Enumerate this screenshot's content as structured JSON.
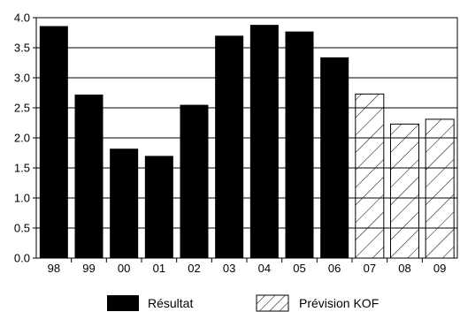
{
  "chart_data": {
    "type": "bar",
    "categories": [
      "98",
      "99",
      "00",
      "01",
      "02",
      "03",
      "04",
      "05",
      "06",
      "07",
      "08",
      "09"
    ],
    "series": [
      {
        "name": "Résultat",
        "values": [
          3.86,
          2.72,
          1.82,
          1.7,
          2.55,
          3.7,
          3.88,
          3.77,
          3.34,
          null,
          null,
          null
        ]
      },
      {
        "name": "Prévision KOF",
        "values": [
          null,
          null,
          null,
          null,
          null,
          null,
          null,
          null,
          null,
          2.73,
          2.23,
          2.31
        ]
      }
    ],
    "ylim": [
      0,
      4.0
    ],
    "yticks": [
      "0.0",
      "0.5",
      "1.0",
      "1.5",
      "2.0",
      "2.5",
      "3.0",
      "3.5",
      "4.0"
    ],
    "grid": true,
    "legend_position": "bottom",
    "colors": {
      "actual": "#000000",
      "forecast_hatch": "#000000",
      "grid": "#000000"
    }
  }
}
